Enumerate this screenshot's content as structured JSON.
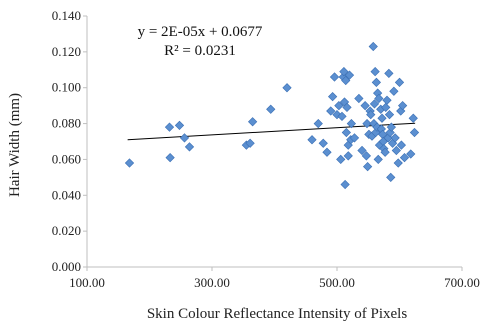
{
  "chart_data": {
    "type": "scatter",
    "title": "",
    "xlabel": "Skin Colour Reflectance Intensity of Pixels",
    "ylabel": "Hair Width (mm)",
    "xlim": [
      100,
      700
    ],
    "ylim": [
      0,
      0.14
    ],
    "x_ticks": [
      "100.00",
      "300.00",
      "500.00",
      "700.00"
    ],
    "y_ticks": [
      "0.000",
      "0.020",
      "0.040",
      "0.060",
      "0.080",
      "0.100",
      "0.120",
      "0.140"
    ],
    "grid": false,
    "legend": "none",
    "marker_color": "#5b8fd0",
    "marker_edge": "#3a6fb4",
    "trendline": {
      "slope": 2e-05,
      "intercept": 0.0677,
      "equation_label": "y = 2E-05x + 0.0677",
      "r2_label": "R² = 0.0231"
    },
    "points": [
      [
        168,
        0.058
      ],
      [
        232,
        0.078
      ],
      [
        233,
        0.061
      ],
      [
        248,
        0.079
      ],
      [
        256,
        0.072
      ],
      [
        264,
        0.067
      ],
      [
        355,
        0.068
      ],
      [
        361,
        0.069
      ],
      [
        365,
        0.081
      ],
      [
        394,
        0.088
      ],
      [
        420,
        0.1
      ],
      [
        460,
        0.071
      ],
      [
        470,
        0.08
      ],
      [
        478,
        0.069
      ],
      [
        484,
        0.064
      ],
      [
        490,
        0.087
      ],
      [
        493,
        0.095
      ],
      [
        496,
        0.106
      ],
      [
        500,
        0.085
      ],
      [
        503,
        0.09
      ],
      [
        506,
        0.06
      ],
      [
        508,
        0.084
      ],
      [
        510,
        0.106
      ],
      [
        511,
        0.109
      ],
      [
        512,
        0.092
      ],
      [
        513,
        0.046
      ],
      [
        514,
        0.104
      ],
      [
        515,
        0.075
      ],
      [
        516,
        0.089
      ],
      [
        518,
        0.068
      ],
      [
        518,
        0.062
      ],
      [
        520,
        0.107
      ],
      [
        522,
        0.071
      ],
      [
        523,
        0.08
      ],
      [
        528,
        0.072
      ],
      [
        535,
        0.094
      ],
      [
        540,
        0.065
      ],
      [
        545,
        0.09
      ],
      [
        547,
        0.062
      ],
      [
        548,
        0.08
      ],
      [
        549,
        0.056
      ],
      [
        551,
        0.074
      ],
      [
        553,
        0.087
      ],
      [
        554,
        0.085
      ],
      [
        556,
        0.073
      ],
      [
        558,
        0.123
      ],
      [
        559,
        0.08
      ],
      [
        560,
        0.091
      ],
      [
        561,
        0.109
      ],
      [
        562,
        0.075
      ],
      [
        563,
        0.103
      ],
      [
        564,
        0.078
      ],
      [
        565,
        0.097
      ],
      [
        566,
        0.06
      ],
      [
        567,
        0.094
      ],
      [
        568,
        0.068
      ],
      [
        570,
        0.088
      ],
      [
        571,
        0.077
      ],
      [
        572,
        0.083
      ],
      [
        573,
        0.074
      ],
      [
        574,
        0.07
      ],
      [
        575,
        0.066
      ],
      [
        577,
        0.064
      ],
      [
        578,
        0.089
      ],
      [
        580,
        0.093
      ],
      [
        582,
        0.072
      ],
      [
        583,
        0.108
      ],
      [
        584,
        0.085
      ],
      [
        585,
        0.075
      ],
      [
        586,
        0.05
      ],
      [
        587,
        0.078
      ],
      [
        589,
        0.069
      ],
      [
        591,
        0.098
      ],
      [
        593,
        0.072
      ],
      [
        595,
        0.065
      ],
      [
        598,
        0.058
      ],
      [
        600,
        0.103
      ],
      [
        602,
        0.087
      ],
      [
        603,
        0.068
      ],
      [
        605,
        0.09
      ],
      [
        608,
        0.061
      ],
      [
        618,
        0.063
      ],
      [
        622,
        0.083
      ],
      [
        624,
        0.075
      ]
    ]
  }
}
